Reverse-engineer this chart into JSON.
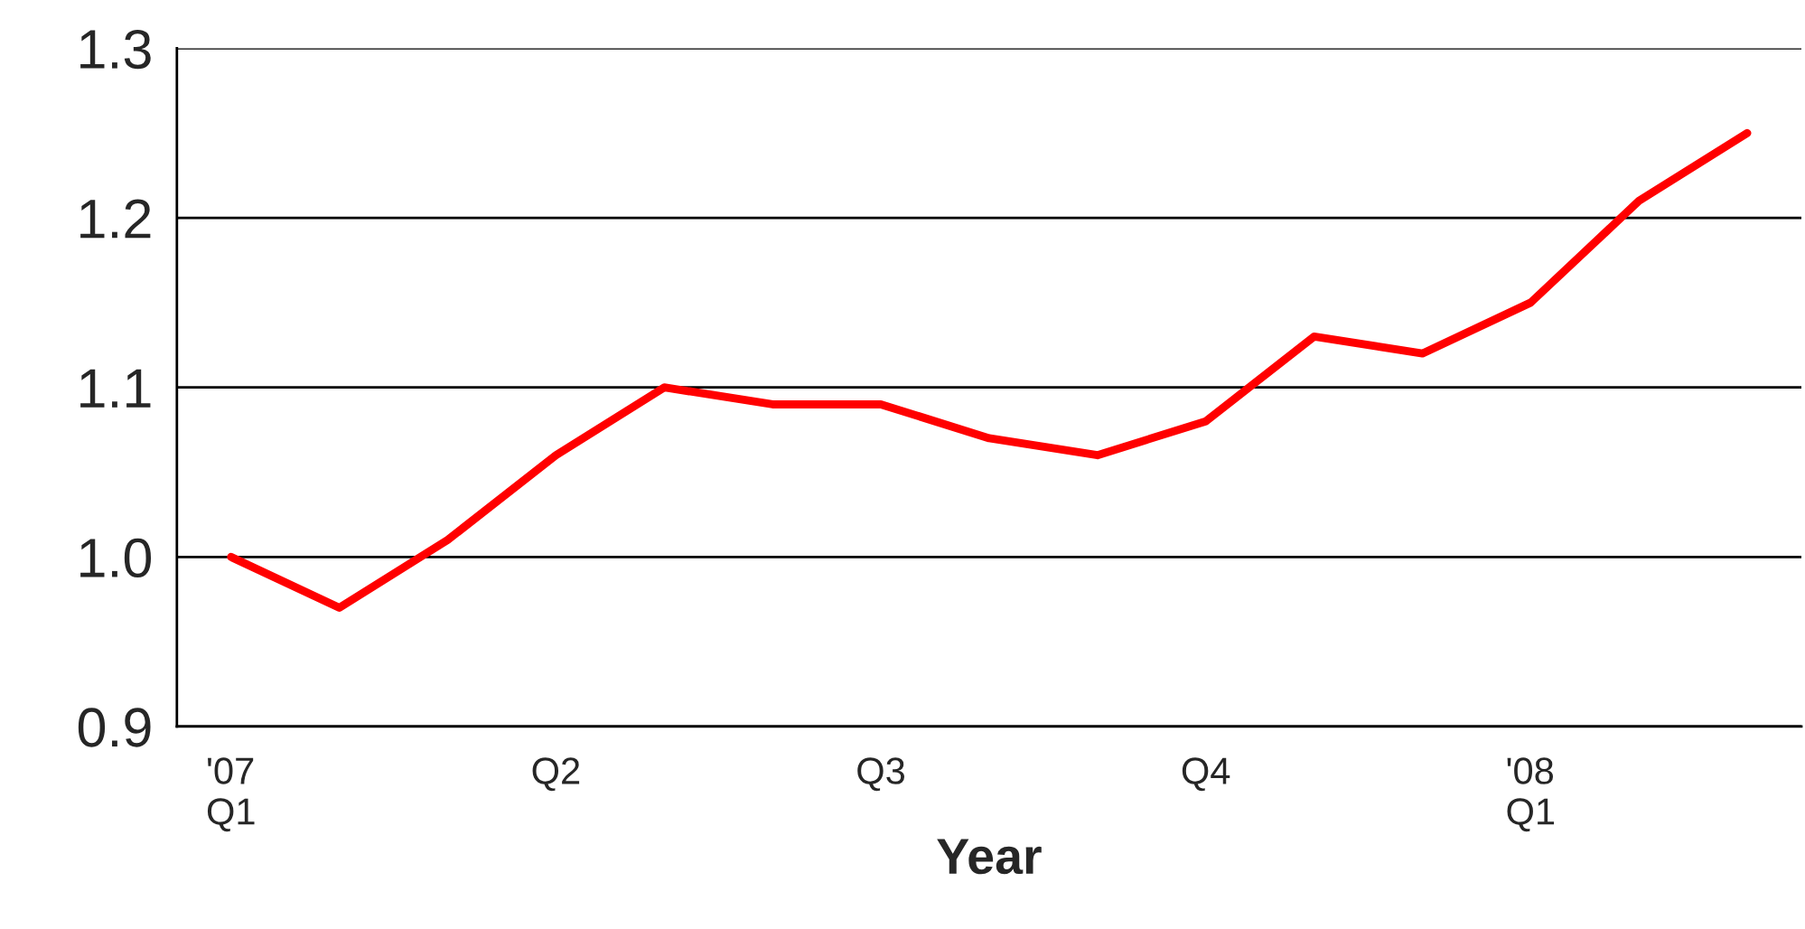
{
  "chart_data": {
    "type": "line",
    "xlabel": "Year",
    "categories": [
      "'07\nQ1",
      null,
      null,
      "Q2",
      null,
      null,
      "Q3",
      null,
      null,
      "Q4",
      null,
      null,
      "'08\nQ1",
      null,
      null
    ],
    "series": [
      {
        "color": "#ff0000",
        "values": [
          1.0,
          0.97,
          1.01,
          1.06,
          1.1,
          1.09,
          1.09,
          1.07,
          1.06,
          1.08,
          1.13,
          1.12,
          1.15,
          1.21,
          1.25
        ]
      }
    ],
    "ylim": [
      0.9,
      1.3
    ],
    "yticks": [
      {
        "value": 0.9,
        "label": "0.9"
      },
      {
        "value": 1.0,
        "label": "1.0"
      },
      {
        "value": 1.1,
        "label": "1.1"
      },
      {
        "value": 1.2,
        "label": "1.2"
      },
      {
        "value": 1.3,
        "label": "1.3"
      }
    ],
    "grid": "y",
    "legend": false,
    "marker": "none",
    "line_style": "solid"
  }
}
